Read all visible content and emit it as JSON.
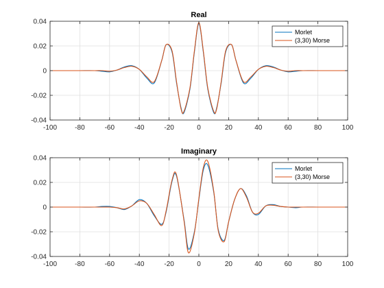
{
  "chart_data": [
    {
      "type": "line",
      "title": "Real",
      "xlim": [
        -100,
        100
      ],
      "ylim": [
        -0.04,
        0.04
      ],
      "xticks": [
        -100,
        -80,
        -60,
        -40,
        -20,
        0,
        20,
        40,
        60,
        80,
        100
      ],
      "yticks": [
        -0.04,
        -0.02,
        0,
        0.02,
        0.04
      ],
      "xtick_labels": [
        "-100",
        "-80",
        "-60",
        "-40",
        "-20",
        "0",
        "20",
        "40",
        "60",
        "80",
        "100"
      ],
      "ytick_labels": [
        "-0.04",
        "-0.02",
        "0",
        "0.02",
        "0.04"
      ],
      "grid": true,
      "legend_position": "top-right",
      "series": [
        {
          "name": "Morlet",
          "color": "#0072bd",
          "x": [
            -100,
            -90,
            -80,
            -70,
            -65,
            -60,
            -55,
            -50,
            -45,
            -40,
            -35,
            -30,
            -25,
            -22,
            -18,
            -15,
            -12,
            -10,
            -6,
            -3,
            0,
            3,
            6,
            10,
            12,
            15,
            18,
            22,
            25,
            30,
            35,
            40,
            45,
            50,
            55,
            60,
            65,
            70,
            80,
            90,
            100
          ],
          "y": [
            0,
            0,
            0,
            0,
            -0.0005,
            -0.001,
            0.0005,
            0.003,
            0.004,
            0.001,
            -0.006,
            -0.01,
            0.008,
            0.021,
            0.015,
            -0.01,
            -0.03,
            -0.034,
            -0.015,
            0.015,
            0.038,
            0.015,
            -0.015,
            -0.034,
            -0.03,
            -0.01,
            0.015,
            0.021,
            0.008,
            -0.01,
            -0.006,
            0.001,
            0.004,
            0.003,
            0.0005,
            -0.001,
            -0.0005,
            0,
            0,
            0,
            0
          ]
        },
        {
          "name": "(3,30) Morse",
          "color": "#d95319",
          "x": [
            -100,
            -90,
            -80,
            -70,
            -65,
            -60,
            -55,
            -50,
            -45,
            -40,
            -35,
            -30,
            -25,
            -22,
            -18,
            -15,
            -12,
            -10,
            -6,
            -3,
            0,
            3,
            6,
            10,
            12,
            15,
            18,
            22,
            25,
            30,
            35,
            40,
            45,
            50,
            55,
            60,
            65,
            70,
            80,
            90,
            100
          ],
          "y": [
            0,
            0,
            0,
            0,
            0,
            -0.0005,
            0.0005,
            0.0025,
            0.0035,
            0.001,
            -0.005,
            -0.009,
            0.008,
            0.021,
            0.016,
            -0.009,
            -0.031,
            -0.033,
            -0.014,
            0.016,
            0.039,
            0.016,
            -0.014,
            -0.033,
            -0.031,
            -0.009,
            0.016,
            0.021,
            0.008,
            -0.009,
            -0.005,
            0.001,
            0.0035,
            0.0025,
            0.0005,
            -0.0005,
            0,
            0,
            0,
            0,
            0
          ]
        }
      ]
    },
    {
      "type": "line",
      "title": "Imaginary",
      "xlim": [
        -100,
        100
      ],
      "ylim": [
        -0.04,
        0.04
      ],
      "xticks": [
        -100,
        -80,
        -60,
        -40,
        -20,
        0,
        20,
        40,
        60,
        80,
        100
      ],
      "yticks": [
        -0.04,
        -0.02,
        0,
        0.02,
        0.04
      ],
      "xtick_labels": [
        "-100",
        "-80",
        "-60",
        "-40",
        "-20",
        "0",
        "20",
        "40",
        "60",
        "80",
        "100"
      ],
      "ytick_labels": [
        "-0.04",
        "-0.02",
        "0",
        "0.02",
        "0.04"
      ],
      "grid": true,
      "legend_position": "top-right",
      "series": [
        {
          "name": "Morlet",
          "color": "#0072bd",
          "x": [
            -100,
            -90,
            -80,
            -70,
            -65,
            -60,
            -55,
            -50,
            -45,
            -40,
            -35,
            -30,
            -25,
            -22,
            -18,
            -15,
            -10,
            -7,
            -3,
            0,
            3,
            6,
            10,
            13,
            17,
            20,
            24,
            28,
            32,
            36,
            40,
            45,
            50,
            55,
            60,
            65,
            70,
            80,
            90,
            100
          ],
          "y": [
            0,
            0,
            0,
            0,
            0.0005,
            0.0005,
            -0.0005,
            -0.002,
            0.001,
            0.006,
            0.003,
            -0.007,
            -0.014,
            -0.004,
            0.021,
            0.025,
            -0.01,
            -0.034,
            -0.02,
            0.006,
            0.03,
            0.034,
            0.012,
            -0.018,
            -0.027,
            -0.012,
            0.006,
            0.015,
            0.009,
            -0.004,
            -0.006,
            0.001,
            0.002,
            0.0005,
            0,
            -0.0005,
            0,
            0,
            0,
            0
          ]
        },
        {
          "name": "(3,30) Morse",
          "color": "#d95319",
          "x": [
            -100,
            -90,
            -80,
            -70,
            -65,
            -60,
            -55,
            -50,
            -45,
            -40,
            -35,
            -30,
            -25,
            -22,
            -18,
            -15,
            -10,
            -7,
            -3,
            0,
            3,
            6,
            10,
            13,
            17,
            20,
            24,
            28,
            32,
            36,
            40,
            45,
            50,
            55,
            60,
            65,
            70,
            80,
            90,
            100
          ],
          "y": [
            0,
            0,
            0,
            0,
            0,
            0,
            -0.0005,
            -0.0015,
            0.001,
            0.005,
            0.003,
            -0.006,
            -0.015,
            -0.003,
            0.022,
            0.026,
            -0.011,
            -0.037,
            -0.021,
            0.007,
            0.032,
            0.037,
            0.013,
            -0.019,
            -0.028,
            -0.012,
            0.006,
            0.015,
            0.008,
            -0.004,
            -0.005,
            0.001,
            0.0015,
            0.0005,
            0,
            0,
            0,
            0,
            0,
            0
          ]
        }
      ]
    }
  ]
}
